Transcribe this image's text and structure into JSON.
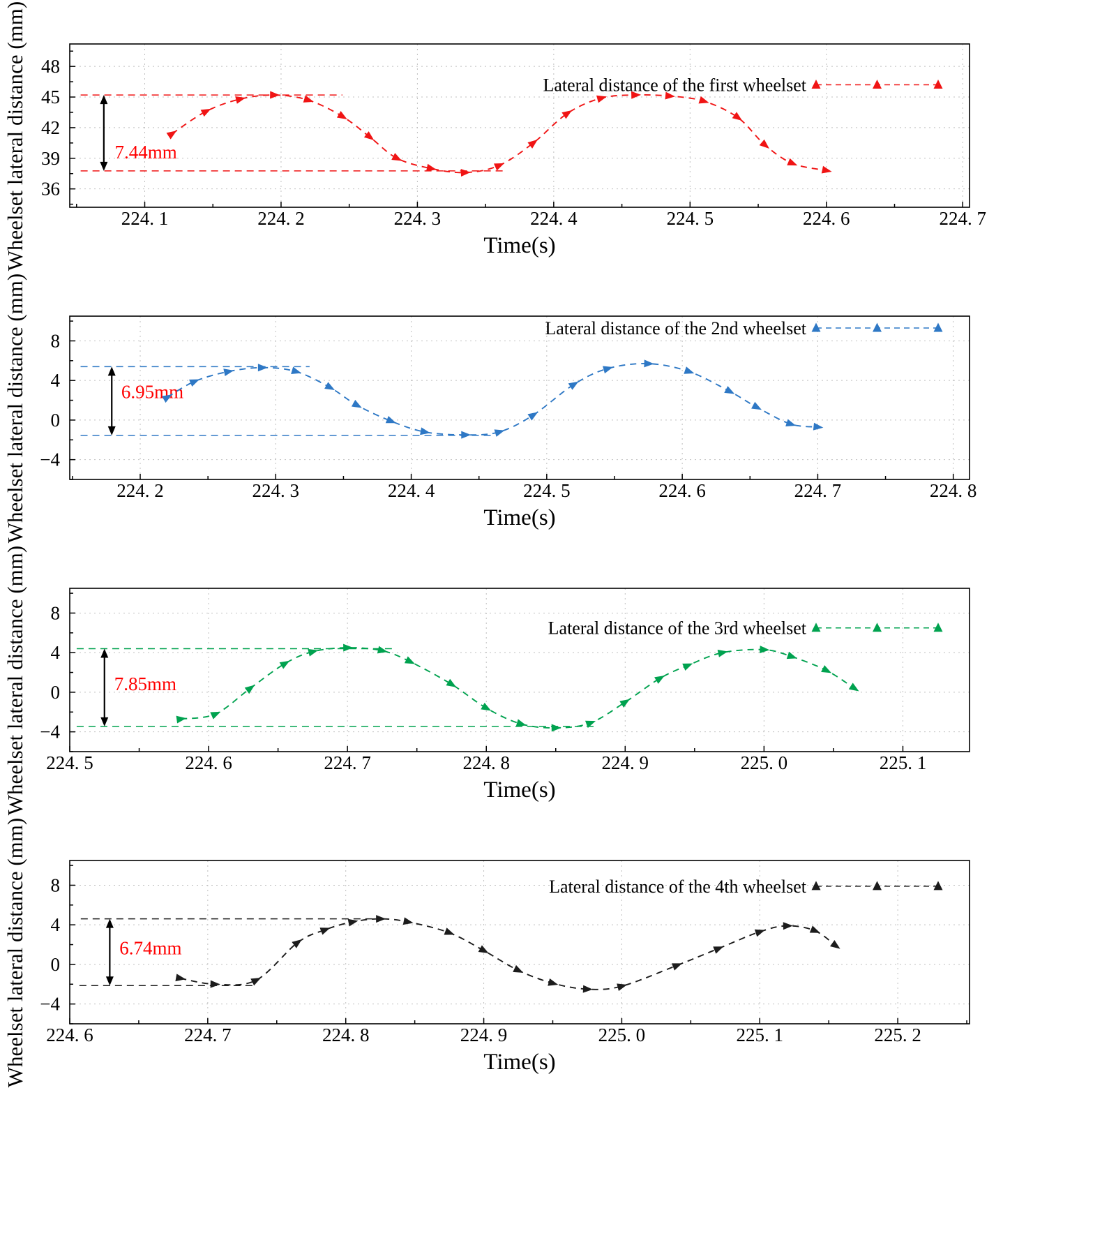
{
  "figure": {
    "background": "#ffffff",
    "grid_color": "#bfbfbf",
    "axis_color": "#000000",
    "annotation_color": "#ff0000"
  },
  "chart_data": [
    {
      "id": "first-wheelset",
      "type": "line",
      "legend": "Lateral distance of the first wheelset",
      "color": "#f01414",
      "xlabel": "Time(s)",
      "ylabel": "Wheelset lateral distance (mm)",
      "xlim": [
        224.045,
        224.705
      ],
      "ylim": [
        34.2,
        50.2
      ],
      "xticks": [
        224.1,
        224.2,
        224.3,
        224.4,
        224.5,
        224.6,
        224.7
      ],
      "xtick_labels": [
        "224. 1",
        "224. 2",
        "224. 3",
        "224. 4",
        "224. 5",
        "224. 6",
        "224. 7"
      ],
      "yticks": [
        36,
        39,
        42,
        45,
        48
      ],
      "ytick_labels": [
        "36",
        "39",
        "42",
        "45",
        "48"
      ],
      "minor_x_step": 0.05,
      "minor_y_step": 1.5,
      "x": [
        224.12,
        224.145,
        224.17,
        224.195,
        224.22,
        224.245,
        224.265,
        224.285,
        224.31,
        224.335,
        224.36,
        224.385,
        224.41,
        224.435,
        224.46,
        224.485,
        224.51,
        224.535,
        224.555,
        224.575,
        224.6
      ],
      "y": [
        41.4,
        43.6,
        44.8,
        45.2,
        44.7,
        43.1,
        41.1,
        39.0,
        38.0,
        37.6,
        38.3,
        40.5,
        43.4,
        44.9,
        45.2,
        45.1,
        44.6,
        43.0,
        40.3,
        38.5,
        37.8
      ],
      "ref_top": {
        "value": 45.2,
        "span": [
          224.053,
          224.245
        ]
      },
      "ref_bottom": {
        "value": 37.76,
        "span": [
          224.053,
          224.365
        ]
      },
      "annotation": {
        "text": "7.44mm",
        "arrow_x": 224.07,
        "text_x": 224.078,
        "text_y": 39.0
      },
      "legend_y": 46.2
    },
    {
      "id": "second-wheelset",
      "type": "line",
      "legend": "Lateral distance of the 2nd wheelset",
      "color": "#2e78c5",
      "xlabel": "Time(s)",
      "ylabel": "Wheelset lateral distance (mm)",
      "xlim": [
        224.148,
        224.812
      ],
      "ylim": [
        -6.0,
        10.5
      ],
      "xticks": [
        224.2,
        224.3,
        224.4,
        224.5,
        224.6,
        224.7,
        224.8
      ],
      "xtick_labels": [
        "224. 2",
        "224. 3",
        "224. 4",
        "224. 5",
        "224. 6",
        "224. 7",
        "224. 8"
      ],
      "yticks": [
        -4,
        0,
        4,
        8
      ],
      "ytick_labels": [
        "−4",
        "0",
        "4",
        "8"
      ],
      "minor_x_step": 0.05,
      "minor_y_step": 2,
      "x": [
        224.22,
        224.24,
        224.265,
        224.29,
        224.315,
        224.34,
        224.36,
        224.385,
        224.41,
        224.44,
        224.465,
        224.49,
        224.52,
        224.545,
        224.575,
        224.605,
        224.635,
        224.655,
        224.68,
        224.7
      ],
      "y": [
        2.3,
        3.9,
        4.9,
        5.3,
        4.9,
        3.3,
        1.5,
        -0.1,
        -1.2,
        -1.5,
        -1.2,
        0.5,
        3.6,
        5.2,
        5.7,
        4.9,
        2.9,
        1.3,
        -0.4,
        -0.7
      ],
      "ref_top": {
        "value": 5.4,
        "span": [
          224.156,
          224.325
        ]
      },
      "ref_bottom": {
        "value": -1.55,
        "span": [
          224.156,
          224.46
        ]
      },
      "annotation": {
        "text": "6.95mm",
        "arrow_x": 224.179,
        "text_x": 224.186,
        "text_y": 2.2
      },
      "legend_y": 9.3
    },
    {
      "id": "third-wheelset",
      "type": "line",
      "legend": "Lateral distance of the 3rd wheelset",
      "color": "#00a24f",
      "xlabel": "Time(s)",
      "ylabel": "Wheelset lateral distance (mm)",
      "xlim": [
        224.5,
        225.148
      ],
      "ylim": [
        -6.0,
        10.5
      ],
      "xticks": [
        224.5,
        224.6,
        224.7,
        224.8,
        224.9,
        225.0,
        225.1
      ],
      "xtick_labels": [
        "224. 5",
        "224. 6",
        "224. 7",
        "224. 8",
        "224. 9",
        "225. 0",
        "225. 1"
      ],
      "yticks": [
        -4,
        0,
        4,
        8
      ],
      "ytick_labels": [
        "−4",
        "0",
        "4",
        "8"
      ],
      "minor_x_step": 0.05,
      "minor_y_step": 2,
      "x": [
        224.58,
        224.605,
        224.63,
        224.655,
        224.675,
        224.7,
        224.725,
        224.745,
        224.775,
        224.8,
        224.825,
        224.85,
        224.875,
        224.9,
        224.925,
        224.945,
        224.97,
        225.0,
        225.02,
        225.045,
        225.065
      ],
      "y": [
        -2.7,
        -2.2,
        0.4,
        2.9,
        4.1,
        4.5,
        4.2,
        3.1,
        0.8,
        -1.6,
        -3.2,
        -3.6,
        -3.1,
        -1.0,
        1.4,
        2.7,
        4.0,
        4.3,
        3.6,
        2.2,
        0.4
      ],
      "ref_top": {
        "value": 4.4,
        "span": [
          224.505,
          224.732
        ]
      },
      "ref_bottom": {
        "value": -3.45,
        "span": [
          224.505,
          224.878
        ]
      },
      "annotation": {
        "text": "7.85mm",
        "arrow_x": 224.525,
        "text_x": 224.532,
        "text_y": 0.2
      },
      "legend_y": 6.5
    },
    {
      "id": "fourth-wheelset",
      "type": "line",
      "legend": "Lateral distance of the 4th wheelset",
      "color": "#1c1c1c",
      "xlabel": "Time(s)",
      "ylabel": "Wheelset lateral distance (mm)",
      "xlim": [
        224.6,
        225.252
      ],
      "ylim": [
        -6.0,
        10.5
      ],
      "xticks": [
        224.6,
        224.7,
        224.8,
        224.9,
        225.0,
        225.1,
        225.2
      ],
      "xtick_labels": [
        "224. 6",
        "224. 7",
        "224. 8",
        "224. 9",
        "225. 0",
        "225. 1",
        "225. 2"
      ],
      "yticks": [
        -4,
        0,
        4,
        8
      ],
      "ytick_labels": [
        "−4",
        "0",
        "4",
        "8"
      ],
      "minor_x_step": 0.05,
      "minor_y_step": 2,
      "x": [
        224.68,
        224.705,
        224.735,
        224.765,
        224.785,
        224.805,
        224.825,
        224.845,
        224.875,
        224.9,
        224.925,
        224.95,
        224.975,
        225.0,
        225.04,
        225.07,
        225.1,
        225.12,
        225.14,
        225.155
      ],
      "y": [
        -1.4,
        -2.0,
        -1.6,
        2.2,
        3.5,
        4.3,
        4.6,
        4.3,
        3.2,
        1.4,
        -0.6,
        -1.9,
        -2.5,
        -2.2,
        -0.1,
        1.6,
        3.3,
        3.9,
        3.4,
        1.9
      ],
      "ref_top": {
        "value": 4.6,
        "span": [
          224.608,
          224.828
        ]
      },
      "ref_bottom": {
        "value": -2.14,
        "span": [
          224.607,
          224.735
        ]
      },
      "annotation": {
        "text": "6.74mm",
        "arrow_x": 224.629,
        "text_x": 224.636,
        "text_y": 1.0
      },
      "legend_y": 7.9
    }
  ]
}
